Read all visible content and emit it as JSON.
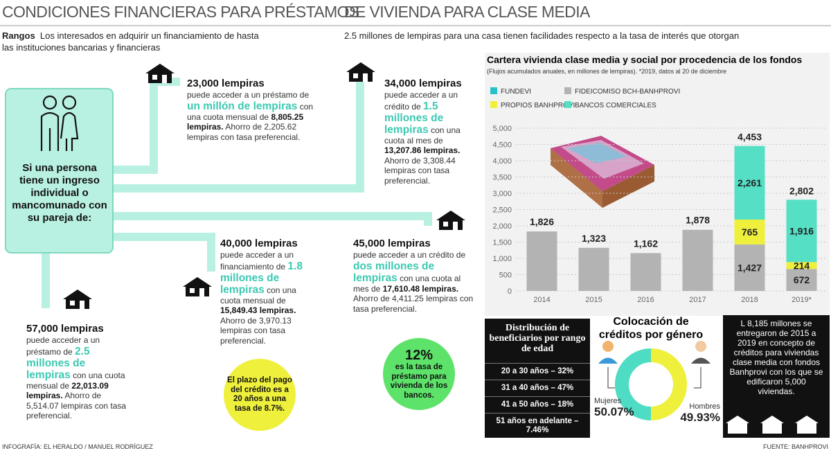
{
  "header": {
    "title_left": "CONDICIONES FINANCIERAS PARA PRÉSTAMOS",
    "title_right": "DE VIVIENDA PARA CLASE MEDIA"
  },
  "intro": {
    "label": "Rangos",
    "line1_left": "Los interesados en adquirir un financiamiento de hasta",
    "line1_right": "2.5 millones de lempiras para una casa tienen facilidades respecto a la tasa de interés que otorgan",
    "line2": "las instituciones bancarias y financieras"
  },
  "income_box": {
    "text": "Si una persona tiene un ingreso individual o mancomunado con su pareja de:"
  },
  "cases": [
    {
      "amount": "23,000 lempiras",
      "intro": "puede acceder a un préstamo de",
      "highlight": "un millón de lempiras",
      "middle": "con una cuota mensual de",
      "payment": "8,805.25 lempiras.",
      "savings": "Ahorro de 2,205.62 lempiras con tasa preferencial."
    },
    {
      "amount": "34,000 lempiras",
      "intro": "puede acceder a un crédito de",
      "highlight": "1.5 millones de lempiras",
      "middle": "con una cuota al mes de",
      "payment": "13,207.86 lempiras.",
      "savings": "Ahorro de 3,308.44 lempiras con tasa preferencial."
    },
    {
      "amount": "40,000 lempiras",
      "intro": "puede acceder a un financiamiento de",
      "highlight": "1.8 millones de lempiras",
      "middle": "con una cuota mensual de",
      "payment": "15,849.43 lempiras.",
      "savings": "Ahorro de 3,970.13 lempiras con tasa preferencial."
    },
    {
      "amount": "45,000 lempiras",
      "intro": "puede acceder a un crédito de",
      "highlight": "dos millones de lempiras",
      "middle": "con una cuota al mes de",
      "payment": "17,610.48 lempiras.",
      "savings": "Ahorro de 4,411.25 lempiras con tasa preferencial."
    },
    {
      "amount": "57,000 lempiras",
      "intro": "puede acceder a un préstamo de",
      "highlight": "2.5 millones de lempiras",
      "middle": "con una cuota mensual de",
      "payment": "22,013.09 lempiras.",
      "savings": "Ahorro de 5,514.07 lempiras con tasa preferencial."
    }
  ],
  "notes": {
    "term": "El plazo del pago del crédito es a 20 años a una tasa de 8.7%.",
    "bank_rate_value": "12%",
    "bank_rate_text": "es la tasa de préstamo para vivienda de los bancos."
  },
  "chart_data": {
    "type": "bar",
    "stacked": true,
    "title": "Cartera vivienda clase media y social por procedencia de los fondos",
    "subtitle": "(Flujos acumulados anuales, en millones de lempiras). *2019, datos al 20 de diciembre",
    "categories": [
      "2014",
      "2015",
      "2016",
      "2017",
      "2018",
      "2019*"
    ],
    "series": [
      {
        "name": "FUNDEVI",
        "color": "#27c1c9",
        "values": [
          null,
          null,
          null,
          null,
          null,
          null
        ]
      },
      {
        "name": "FIDEICOMISO BCH-BANHPROVI",
        "color": "#b3b3b3",
        "values": [
          1826,
          1323,
          1162,
          1878,
          1427,
          672
        ],
        "value_labels": [
          "1,826",
          "1,323",
          "1,162",
          "1,878",
          "1,427",
          "672"
        ]
      },
      {
        "name": "PROPIOS BANHPROVI",
        "color": "#eef03c",
        "values": [
          null,
          null,
          null,
          null,
          765,
          214
        ],
        "value_labels": [
          null,
          null,
          null,
          null,
          "765",
          "214"
        ]
      },
      {
        "name": "BANCOS COMERCIALES",
        "color": "#55e0c6",
        "values": [
          null,
          null,
          null,
          null,
          2261,
          1916
        ],
        "value_labels": [
          null,
          null,
          null,
          null,
          "2,261",
          "1,916"
        ]
      }
    ],
    "totals": [
      null,
      null,
      null,
      null,
      4453,
      2802
    ],
    "total_labels": [
      null,
      null,
      null,
      null,
      "4,453",
      "2,802"
    ],
    "ylim": [
      0,
      5000
    ],
    "yticks": [
      0,
      500,
      {
        "value": 1000,
        "label": "1,000"
      },
      {
        "value": 1500,
        "label": "1,500"
      },
      {
        "value": 2000,
        "label": "2,000"
      },
      {
        "value": 2500,
        "label": "2,500"
      },
      {
        "value": 3000,
        "label": "3,000"
      },
      {
        "value": 3500,
        "label": "3,500"
      },
      {
        "value": 4000,
        "label": "4,000"
      },
      {
        "value": 4500,
        "label": "4,500"
      },
      {
        "value": 5000,
        "label": "5,000"
      }
    ],
    "grid": true
  },
  "age_distribution": {
    "title": "Distribución de beneficiarios por rango de edad",
    "rows": [
      "20 a 30 años – 32%",
      "31 a 40 años – 47%",
      "41 a 50 años – 18%",
      "51 años en adelante – 7.46%"
    ]
  },
  "gender_chart": {
    "type": "donut",
    "title": "Colocación de créditos por género",
    "categories": [
      "Mujeres",
      "Hombres"
    ],
    "values": [
      50.07,
      49.93
    ],
    "value_labels": [
      "50.07%",
      "49.93%"
    ],
    "colors": [
      "#4fdcc4",
      "#eef03c"
    ]
  },
  "summary": "L 8,185 millones se entregaron de 2015 a 2019 en concepto de créditos para viviendas clase media con fondos Banhprovi con los que se edificaron 5,000 viviendas.",
  "footer": {
    "credit": "INFOGRAFÍA: EL HERALDO / MANUEL RODRÍGUEZ",
    "source": "FUENTE: BANHPROVI"
  }
}
